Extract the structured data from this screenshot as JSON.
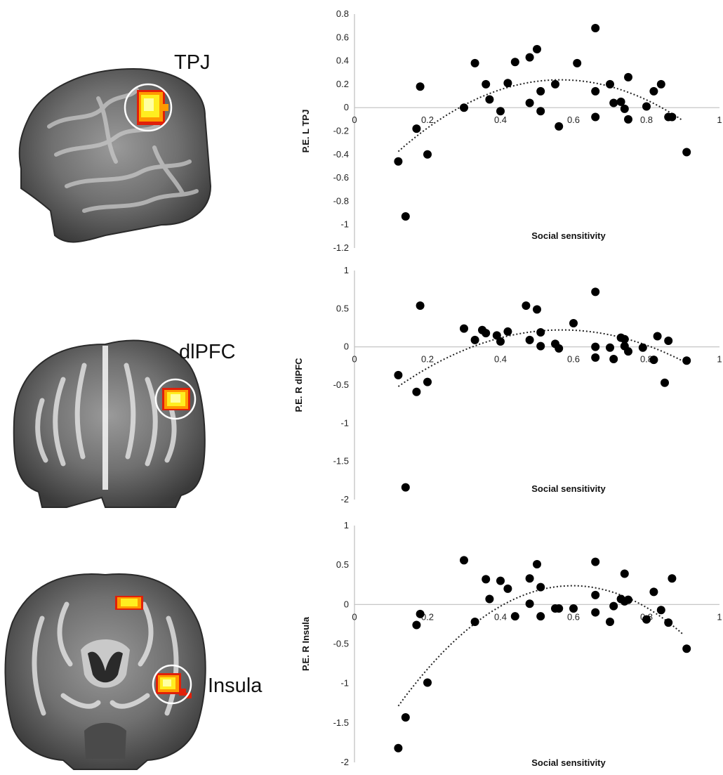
{
  "colors": {
    "point": "#000000",
    "axis": "#bfbfbf",
    "trend": "#222222",
    "activation_hot": "#ffff40",
    "activation_mid": "#ff9900",
    "activation_edge": "#e0200a",
    "roi_circle": "#ffffff"
  },
  "brains": [
    {
      "label": "TPJ",
      "view": "sagittal"
    },
    {
      "label": "dlPFC",
      "view": "coronal"
    },
    {
      "label": "Insula",
      "view": "coronal"
    }
  ],
  "chart_data": [
    {
      "type": "scatter",
      "title": "",
      "xlabel": "Social sensitivity",
      "ylabel": "P.E. L TPJ",
      "xlim": [
        0,
        1
      ],
      "ylim": [
        -1.2,
        0.8
      ],
      "xticks": [
        "0",
        "0.2",
        "0.4",
        "0.6",
        "0.8",
        "1"
      ],
      "yticks": [
        "0.8",
        "0.6",
        "0.4",
        "0.2",
        "0",
        "-0.2",
        "-0.4",
        "-0.6",
        "-0.8",
        "-1",
        "-1.2"
      ],
      "grid": false,
      "trendline": "polynomial (order 2), dotted",
      "points": [
        [
          0.12,
          -0.46
        ],
        [
          0.14,
          -0.93
        ],
        [
          0.17,
          -0.18
        ],
        [
          0.18,
          0.18
        ],
        [
          0.2,
          -0.4
        ],
        [
          0.3,
          0.0
        ],
        [
          0.33,
          0.38
        ],
        [
          0.36,
          0.2
        ],
        [
          0.37,
          0.07
        ],
        [
          0.4,
          -0.03
        ],
        [
          0.42,
          0.21
        ],
        [
          0.44,
          0.39
        ],
        [
          0.48,
          0.43
        ],
        [
          0.48,
          0.04
        ],
        [
          0.5,
          0.5
        ],
        [
          0.51,
          0.14
        ],
        [
          0.51,
          -0.03
        ],
        [
          0.55,
          0.2
        ],
        [
          0.56,
          -0.16
        ],
        [
          0.61,
          0.38
        ],
        [
          0.66,
          0.68
        ],
        [
          0.66,
          0.14
        ],
        [
          0.66,
          -0.08
        ],
        [
          0.7,
          0.2
        ],
        [
          0.71,
          0.04
        ],
        [
          0.73,
          0.05
        ],
        [
          0.74,
          -0.01
        ],
        [
          0.75,
          0.26
        ],
        [
          0.75,
          -0.1
        ],
        [
          0.8,
          0.01
        ],
        [
          0.82,
          0.14
        ],
        [
          0.84,
          0.2
        ],
        [
          0.86,
          -0.08
        ],
        [
          0.87,
          -0.08
        ],
        [
          0.91,
          -0.38
        ]
      ],
      "trend_coeffs": [
        -3.1,
        3.5,
        -0.75
      ],
      "trend_range": [
        0.12,
        0.9
      ]
    },
    {
      "type": "scatter",
      "title": "",
      "xlabel": "Social sensitivity",
      "ylabel": "P.E. R dlPFC",
      "xlim": [
        0,
        1
      ],
      "ylim": [
        -2,
        1
      ],
      "xticks": [
        "0",
        "0.2",
        "0.4",
        "0.6",
        "0.8",
        "1"
      ],
      "yticks": [
        "1",
        "0.5",
        "0",
        "-0.5",
        "-1",
        "-1.5",
        "-2"
      ],
      "grid": false,
      "trendline": "polynomial (order 2), dotted",
      "points": [
        [
          0.12,
          -0.37
        ],
        [
          0.14,
          -1.84
        ],
        [
          0.17,
          -0.59
        ],
        [
          0.18,
          0.54
        ],
        [
          0.2,
          -0.46
        ],
        [
          0.3,
          0.24
        ],
        [
          0.33,
          0.09
        ],
        [
          0.35,
          0.22
        ],
        [
          0.36,
          0.18
        ],
        [
          0.39,
          0.15
        ],
        [
          0.4,
          0.07
        ],
        [
          0.42,
          0.2
        ],
        [
          0.47,
          0.54
        ],
        [
          0.48,
          0.09
        ],
        [
          0.5,
          0.49
        ],
        [
          0.51,
          0.19
        ],
        [
          0.51,
          0.01
        ],
        [
          0.55,
          0.04
        ],
        [
          0.56,
          -0.02
        ],
        [
          0.6,
          0.31
        ],
        [
          0.66,
          0.72
        ],
        [
          0.66,
          0.0
        ],
        [
          0.66,
          -0.14
        ],
        [
          0.7,
          -0.01
        ],
        [
          0.71,
          -0.16
        ],
        [
          0.73,
          0.12
        ],
        [
          0.74,
          0.01
        ],
        [
          0.74,
          0.1
        ],
        [
          0.75,
          -0.06
        ],
        [
          0.79,
          -0.01
        ],
        [
          0.82,
          -0.17
        ],
        [
          0.83,
          0.14
        ],
        [
          0.85,
          -0.47
        ],
        [
          0.86,
          0.08
        ],
        [
          0.91,
          -0.18
        ]
      ],
      "trend_coeffs": [
        -3.7,
        4.2,
        -0.97
      ],
      "trend_range": [
        0.12,
        0.9
      ]
    },
    {
      "type": "scatter",
      "title": "",
      "xlabel": "Social sensitivity",
      "ylabel": "P.E. R Insula",
      "xlim": [
        0,
        1
      ],
      "ylim": [
        -2,
        1
      ],
      "xticks": [
        "0",
        "0.2",
        "0.4",
        "0.6",
        "0.8",
        "1"
      ],
      "yticks": [
        "1",
        "0.5",
        "0",
        "-0.5",
        "-1",
        "-1.5",
        "-2"
      ],
      "grid": false,
      "trendline": "polynomial (order 2), dotted",
      "points": [
        [
          0.12,
          -1.82
        ],
        [
          0.14,
          -1.43
        ],
        [
          0.17,
          -0.26
        ],
        [
          0.18,
          -0.12
        ],
        [
          0.2,
          -0.99
        ],
        [
          0.3,
          0.56
        ],
        [
          0.33,
          -0.22
        ],
        [
          0.36,
          0.32
        ],
        [
          0.37,
          0.07
        ],
        [
          0.4,
          0.3
        ],
        [
          0.42,
          0.2
        ],
        [
          0.44,
          -0.15
        ],
        [
          0.48,
          0.33
        ],
        [
          0.48,
          0.01
        ],
        [
          0.5,
          0.51
        ],
        [
          0.51,
          0.22
        ],
        [
          0.51,
          -0.15
        ],
        [
          0.55,
          -0.05
        ],
        [
          0.56,
          -0.05
        ],
        [
          0.6,
          -0.05
        ],
        [
          0.66,
          0.54
        ],
        [
          0.66,
          0.12
        ],
        [
          0.66,
          -0.1
        ],
        [
          0.7,
          -0.22
        ],
        [
          0.71,
          -0.02
        ],
        [
          0.73,
          0.07
        ],
        [
          0.74,
          0.04
        ],
        [
          0.74,
          0.39
        ],
        [
          0.75,
          0.06
        ],
        [
          0.8,
          -0.19
        ],
        [
          0.82,
          0.16
        ],
        [
          0.84,
          -0.07
        ],
        [
          0.86,
          -0.23
        ],
        [
          0.87,
          0.33
        ],
        [
          0.91,
          -0.56
        ]
      ],
      "trend_coeffs": [
        -6.7,
        8.0,
        -2.15
      ],
      "trend_range": [
        0.12,
        0.9
      ]
    }
  ]
}
